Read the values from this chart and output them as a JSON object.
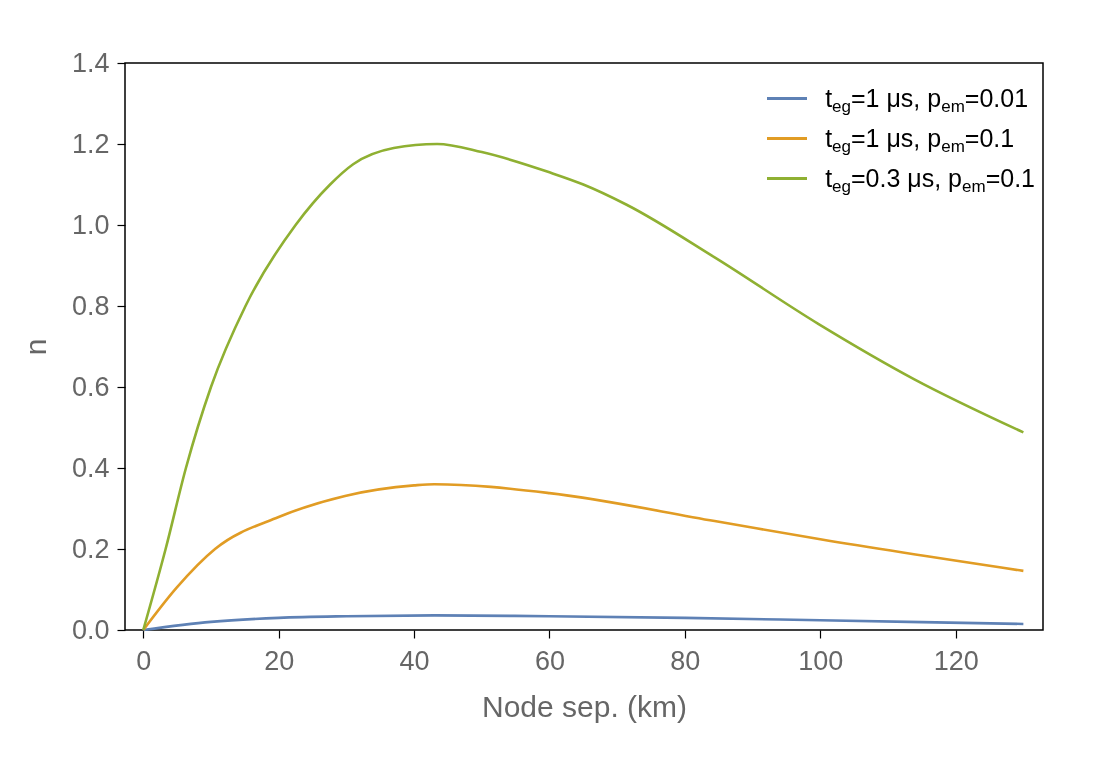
{
  "chart_data": {
    "type": "line",
    "xlabel": "Node sep. (km)",
    "ylabel": "n",
    "xlim": [
      -2.7,
      132.9
    ],
    "xticks": [
      0,
      20,
      40,
      60,
      80,
      100,
      120
    ],
    "ylim": [
      0,
      1.4
    ],
    "yticks": [
      {
        "value": 0,
        "label": "0.0"
      },
      {
        "value": 0.2,
        "label": "0.2"
      },
      {
        "value": 0.4,
        "label": "0.4"
      },
      {
        "value": 0.6,
        "label": "0.6"
      },
      {
        "value": 0.8,
        "label": "0.8"
      },
      {
        "value": 1,
        "label": "1.0"
      },
      {
        "value": 1.2,
        "label": "1.2"
      },
      {
        "value": 1.4,
        "label": "1.4"
      }
    ],
    "grid": false,
    "legend": "top right",
    "marker": "none",
    "line_style": "solid",
    "series": [
      {
        "name": "t$_{eg}$=1 μs, p$_{em}$=0.01",
        "color": "#5e81b5",
        "x": [
          0,
          10,
          20,
          30,
          43,
          60,
          80,
          100,
          130
        ],
        "values": [
          0,
          0.02,
          0.03,
          0.034,
          0.036,
          0.034,
          0.03,
          0.024,
          0.015
        ]
      },
      {
        "name": "t$_{eg}$=1 μs, p$_{em}$=0.1",
        "color": "#e19c24",
        "x": [
          0,
          4.9,
          10.6,
          20,
          29.8,
          40,
          43,
          60,
          84.4,
          100,
          130
        ],
        "values": [
          0,
          0.104,
          0.2,
          0.279,
          0.331,
          0.357,
          0.36,
          0.338,
          0.269,
          0.224,
          0.146
        ]
      },
      {
        "name": "t$_{eg}$=0.3 μs, p$_{em}$=0.1",
        "color": "#8fb032",
        "x": [
          0,
          3.3,
          6.3,
          10,
          15.1,
          22.5,
          27.6,
          31,
          37,
          43.4,
          50,
          60,
          65,
          71.4,
          84.4,
          99.7,
          113.9,
          130
        ],
        "values": [
          0,
          0.2,
          0.4,
          0.6,
          0.8,
          1.0,
          1.1,
          1.15,
          1.19,
          1.2,
          1.18,
          1.13,
          1.1,
          1.05,
          0.92,
          0.756,
          0.619,
          0.488
        ]
      }
    ]
  }
}
